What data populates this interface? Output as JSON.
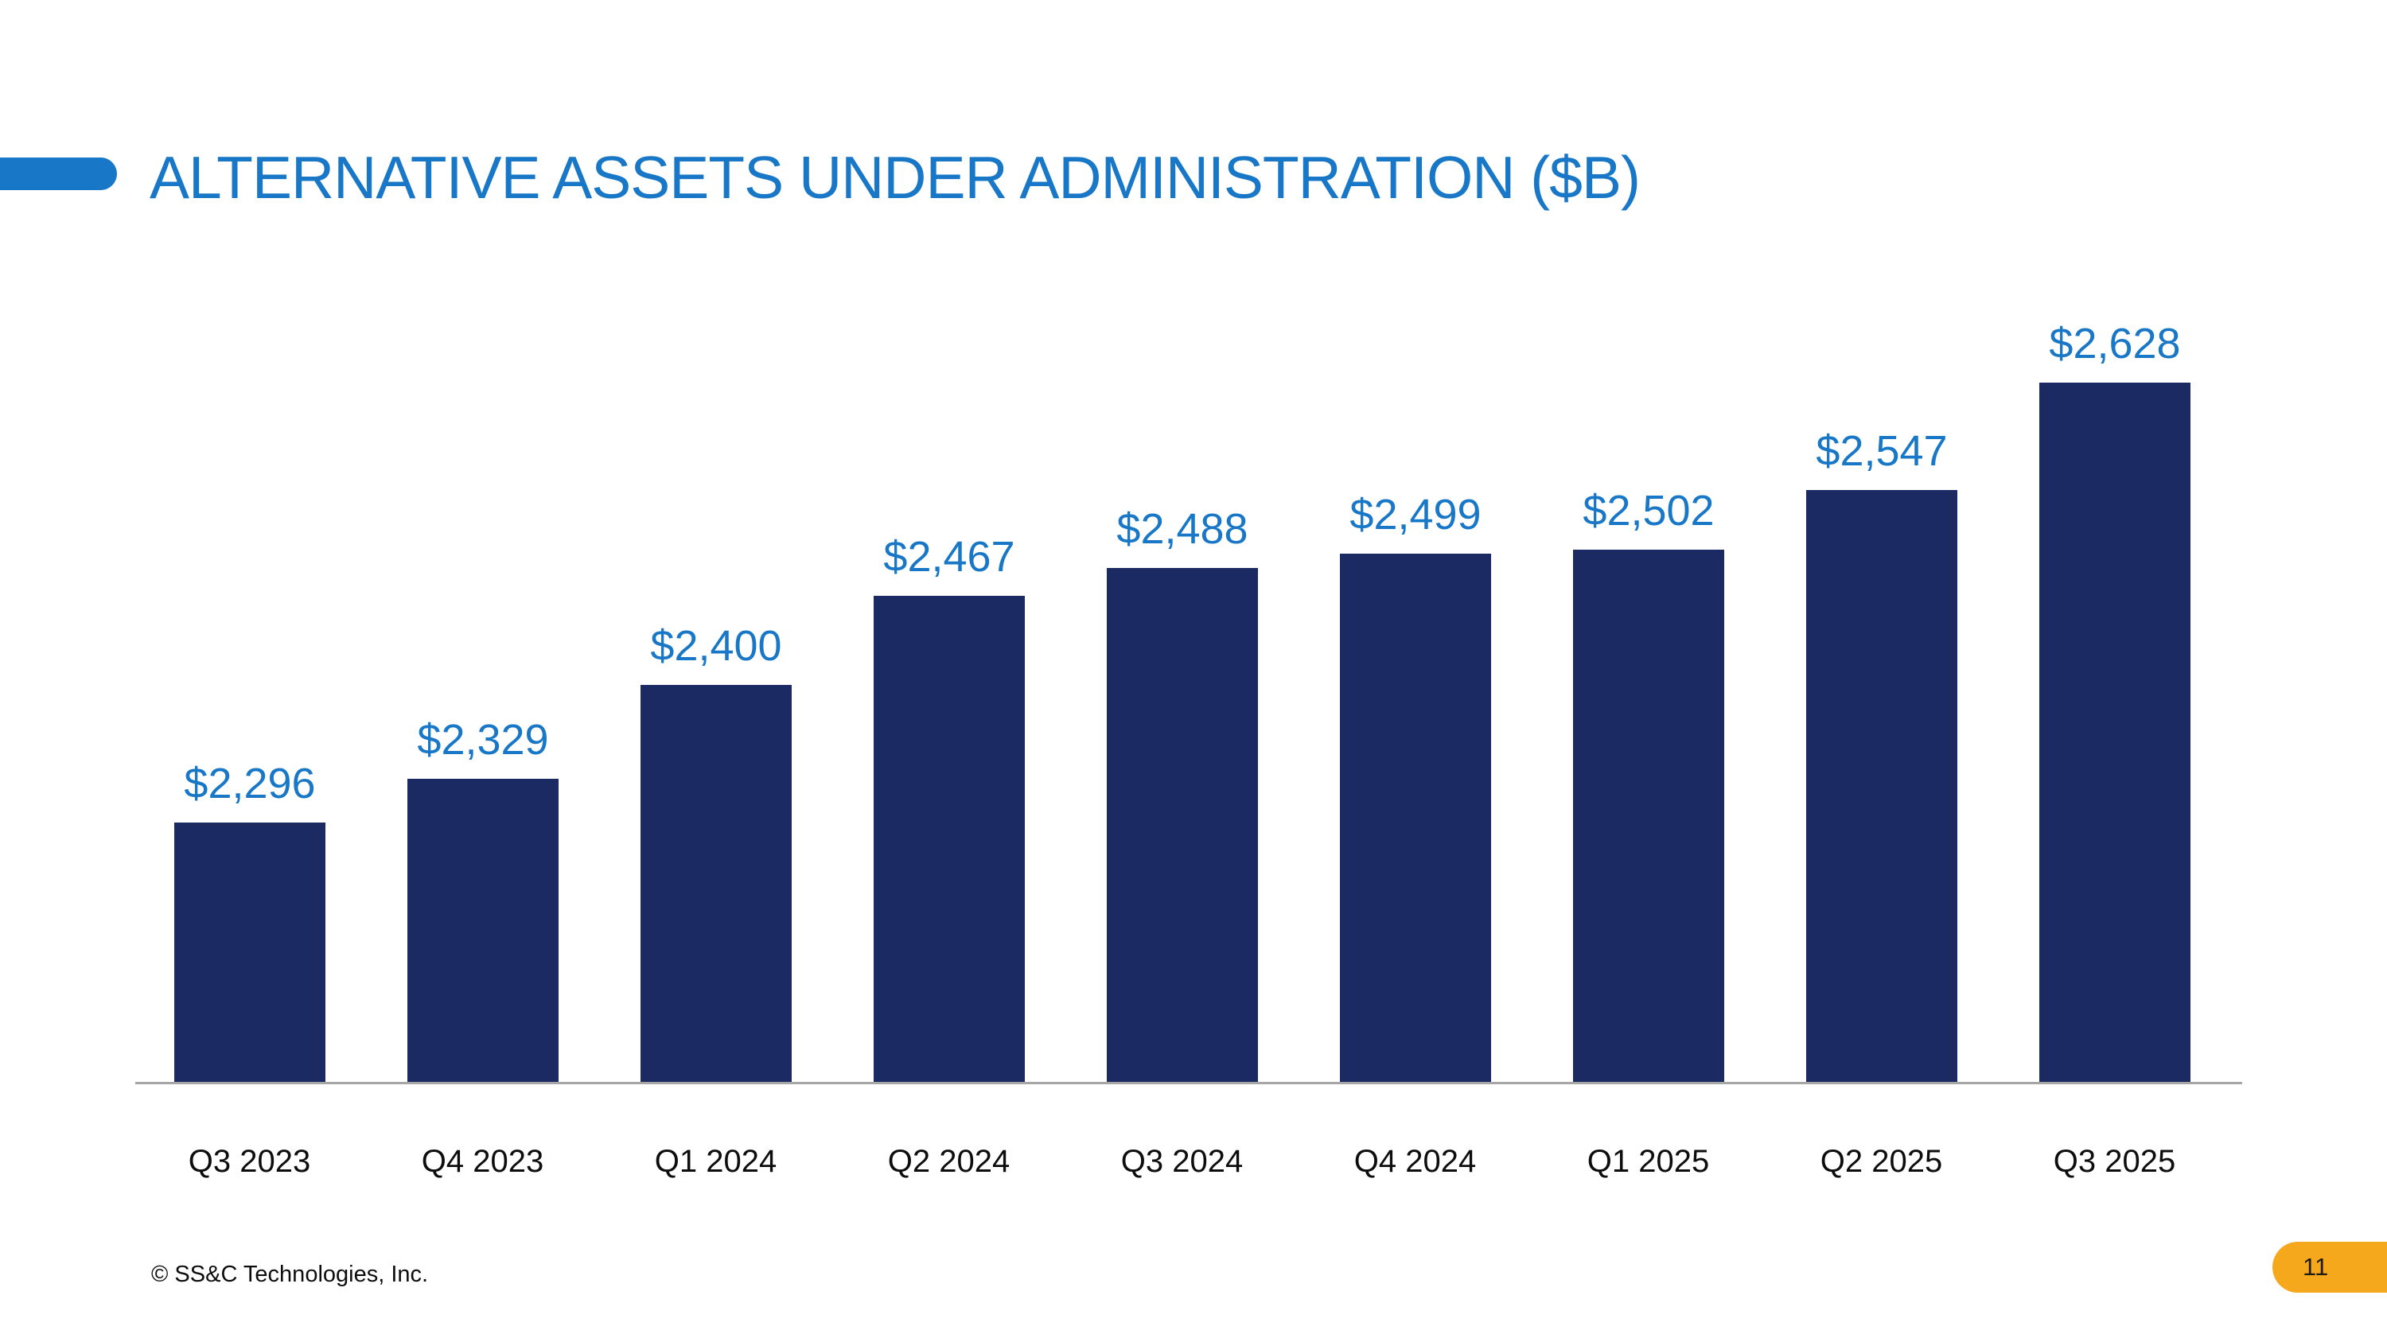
{
  "slide": {
    "title": "ALTERNATIVE ASSETS UNDER ADMINISTRATION ($B)",
    "footer_copyright": "© SS&C Technologies, Inc.",
    "page_number": "11",
    "colors": {
      "accent_blue": "#1877C6",
      "bar_navy": "#1B2A63",
      "label_blue": "#1877C6",
      "pill_orange": "#F6A81C",
      "axis_gray": "#A6A6A6",
      "text_black": "#0D0D0D"
    }
  },
  "chart_data": {
    "type": "bar",
    "title": "ALTERNATIVE ASSETS UNDER ADMINISTRATION ($B)",
    "categories": [
      "Q3 2023",
      "Q4 2023",
      "Q1 2024",
      "Q2 2024",
      "Q3 2024",
      "Q4 2024",
      "Q1 2025",
      "Q2 2025",
      "Q3 2025"
    ],
    "values": [
      2296,
      2329,
      2400,
      2467,
      2488,
      2499,
      2502,
      2547,
      2628
    ],
    "value_labels": [
      "$2,296",
      "$2,329",
      "$2,400",
      "$2,467",
      "$2,488",
      "$2,499",
      "$2,502",
      "$2,547",
      "$2,628"
    ],
    "unit_note": "$B",
    "xlabel": "",
    "ylabel": "",
    "ylim": [
      2100,
      2687
    ],
    "grid": false,
    "legend": false,
    "bar_color": "#1B2A63",
    "value_label_color": "#1877C6"
  }
}
